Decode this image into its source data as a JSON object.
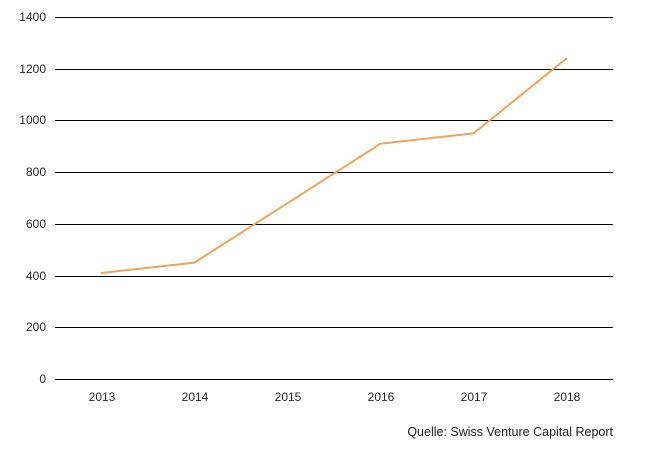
{
  "source_note": "Quelle: Swiss Venture Capital Report",
  "colors": {
    "line": "#EDA35C",
    "gridline": "#000000",
    "tick_text": "#262626"
  },
  "chart_data": {
    "type": "line",
    "categories": [
      "2013",
      "2014",
      "2015",
      "2016",
      "2017",
      "2018"
    ],
    "values": [
      410,
      450,
      680,
      910,
      950,
      1240
    ],
    "title": "",
    "xlabel": "",
    "ylabel": "",
    "ylim": [
      0,
      1400
    ],
    "ytick_step": 200,
    "yticks": [
      0,
      200,
      400,
      600,
      800,
      1000,
      1200,
      1400
    ],
    "grid": true,
    "legend": false,
    "annotations": [
      "Quelle: Swiss Venture Capital Report"
    ]
  }
}
